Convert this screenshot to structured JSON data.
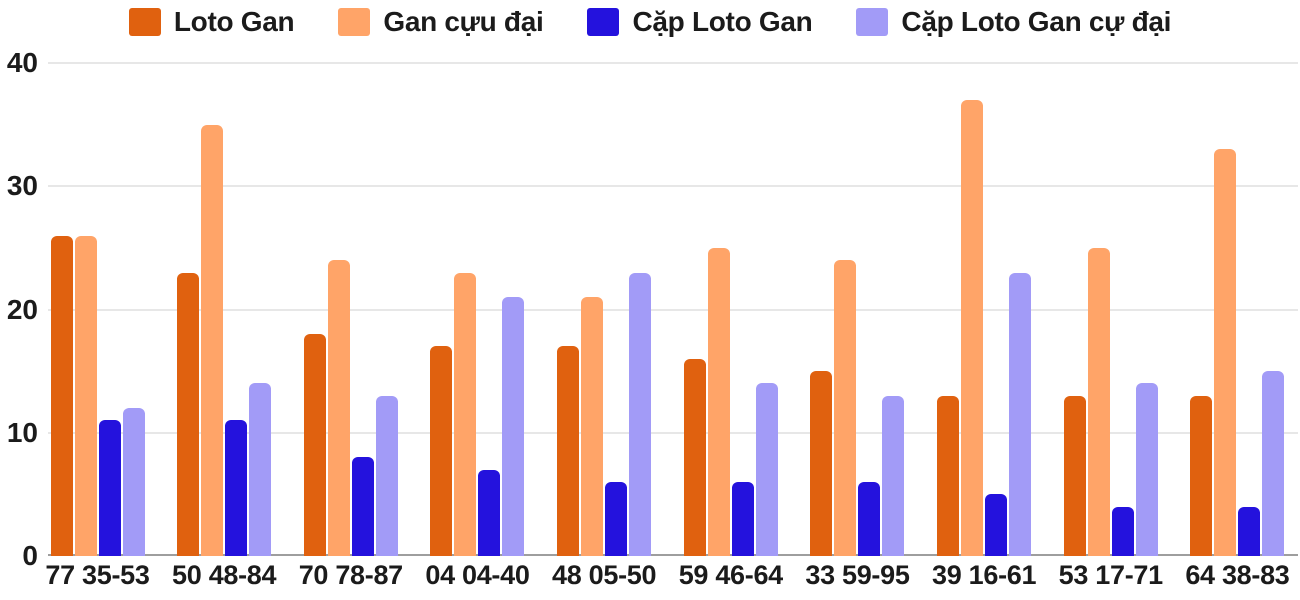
{
  "chart_data": {
    "type": "bar",
    "title": "",
    "categories": [
      "77 35-53",
      "50 48-84",
      "70 78-87",
      "04 04-40",
      "48 05-50",
      "59 46-64",
      "33 59-95",
      "39 16-61",
      "53 17-71",
      "64 38-83"
    ],
    "series": [
      {
        "name": "Loto Gan",
        "color": "#e0610f",
        "values": [
          26,
          23,
          18,
          17,
          17,
          16,
          15,
          13,
          13,
          13
        ]
      },
      {
        "name": "Gan cựu đại",
        "color": "#ffa468",
        "values": [
          26,
          35,
          24,
          23,
          21,
          25,
          24,
          37,
          25,
          33
        ]
      },
      {
        "name": "Cặp Loto Gan",
        "color": "#2412dd",
        "values": [
          11,
          11,
          8,
          7,
          6,
          6,
          6,
          5,
          4,
          4
        ]
      },
      {
        "name": "Cặp Loto Gan cự đại",
        "color": "#a29bf7",
        "values": [
          12,
          14,
          13,
          21,
          23,
          14,
          13,
          23,
          14,
          15
        ]
      }
    ],
    "xlabel": "",
    "ylabel": "",
    "ylim": [
      0,
      40
    ],
    "yticks": [
      0,
      10,
      20,
      30,
      40
    ],
    "grid": true,
    "legend_position": "top"
  },
  "colors": {
    "background": "#ffffff",
    "gridline": "#e7e7e7",
    "axis_line": "#9e9e9e",
    "text": "#1b1b1b"
  }
}
